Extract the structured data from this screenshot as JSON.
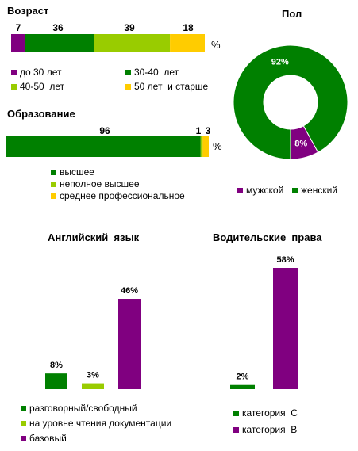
{
  "colors": {
    "purple": "#800080",
    "green": "#008000",
    "lightgreen": "#99cc00",
    "yellow": "#ffcc00"
  },
  "chart_data": [
    {
      "type": "bar",
      "orientation": "horizontal-stacked",
      "title": "Возраст",
      "unit": "%",
      "series": [
        {
          "name": "до 30 лет",
          "values": [
            7
          ],
          "color": "#800080"
        },
        {
          "name": "30-40  лет",
          "values": [
            36
          ],
          "color": "#008000"
        },
        {
          "name": "40-50  лет",
          "values": [
            39
          ],
          "color": "#99cc00"
        },
        {
          "name": "50 лет  и старше",
          "values": [
            18
          ],
          "color": "#ffcc00"
        }
      ],
      "legend": "bottom"
    },
    {
      "type": "pie",
      "title": "Пол",
      "slices": [
        {
          "label": "мужской",
          "value": 8,
          "value_label": "8%",
          "color": "#800080"
        },
        {
          "label": "женский",
          "value": 92,
          "value_label": "92%",
          "color": "#008000"
        }
      ],
      "legend": "bottom"
    },
    {
      "type": "bar",
      "orientation": "horizontal-stacked",
      "title": "Образование",
      "unit": "%",
      "series": [
        {
          "name": "высшее",
          "values": [
            96
          ],
          "color": "#008000"
        },
        {
          "name": "неполное высшее",
          "values": [
            1
          ],
          "color": "#99cc00"
        },
        {
          "name": "среднее профессиональное",
          "values": [
            3
          ],
          "color": "#ffcc00"
        }
      ],
      "legend": "bottom"
    },
    {
      "type": "bar",
      "title": "Английский  язык",
      "series": [
        {
          "name": "разговорный/свободный",
          "values": [
            8
          ],
          "value_label": "8%",
          "color": "#008000"
        },
        {
          "name": "на уровне чтения документации",
          "values": [
            3
          ],
          "value_label": "3%",
          "color": "#99cc00"
        },
        {
          "name": "базовый",
          "values": [
            46
          ],
          "value_label": "46%",
          "color": "#800080"
        }
      ],
      "legend": "bottom"
    },
    {
      "type": "bar",
      "title": "Водительские  права",
      "series": [
        {
          "name": "категория  С",
          "values": [
            2
          ],
          "value_label": "2%",
          "color": "#008000"
        },
        {
          "name": "категория  В",
          "values": [
            58
          ],
          "value_label": "58%",
          "color": "#800080"
        }
      ],
      "legend": "bottom"
    }
  ]
}
